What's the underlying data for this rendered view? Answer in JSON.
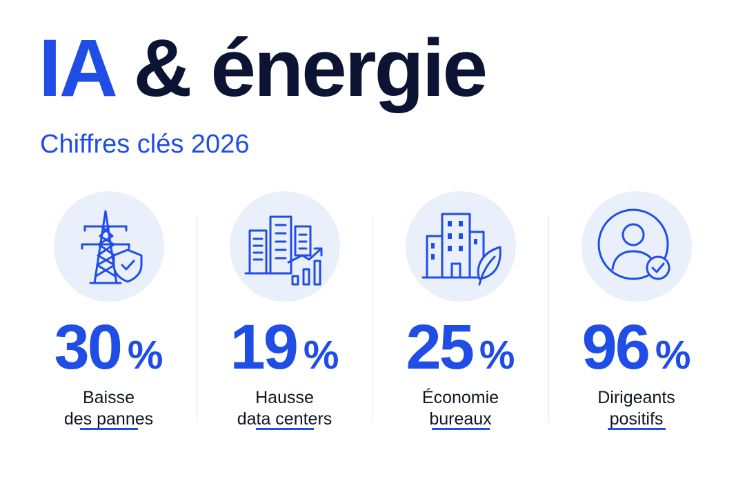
{
  "header": {
    "title_accent": "IA",
    "title_rest": "& énergie",
    "subtitle": "Chiffres clés 2026"
  },
  "colors": {
    "accent": "#1f4de6",
    "dark": "#0d1433",
    "circle_bg": "#e9effb"
  },
  "stats": [
    {
      "icon": "power-pylon-shield-icon",
      "value": "30",
      "unit": "%",
      "label_line1": "Baisse",
      "label_line2": "des pannes"
    },
    {
      "icon": "buildings-growth-chart-icon",
      "value": "19",
      "unit": "%",
      "label_line1": "Hausse",
      "label_line2": "data centers"
    },
    {
      "icon": "office-building-leaf-icon",
      "value": "25",
      "unit": "%",
      "label_line1": "Économie",
      "label_line2": "bureaux"
    },
    {
      "icon": "user-checkmark-icon",
      "value": "96",
      "unit": "%",
      "label_line1": "Dirigeants",
      "label_line2": "positifs"
    }
  ]
}
